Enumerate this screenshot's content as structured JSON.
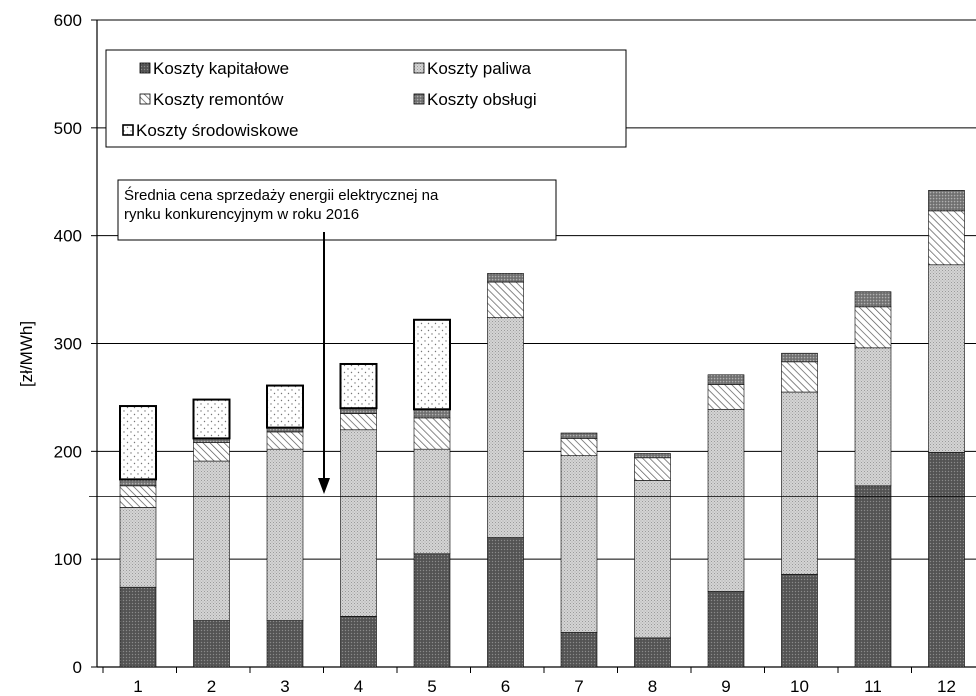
{
  "chart_data": {
    "type": "bar",
    "stacked": true,
    "ylabel": "[zł/MWh]",
    "ylim": [
      0,
      600
    ],
    "yticks": [
      0,
      100,
      200,
      300,
      400,
      500,
      600
    ],
    "categories": [
      "1",
      "2",
      "3",
      "4",
      "5",
      "6",
      "7",
      "8",
      "9",
      "10",
      "11",
      "12"
    ],
    "series": [
      {
        "name": "Koszty kapitałowe",
        "pattern": "dark",
        "values": [
          74,
          43,
          43,
          47,
          105,
          120,
          32,
          27,
          70,
          86,
          168,
          199
        ]
      },
      {
        "name": "Koszty paliwa",
        "pattern": "light",
        "values": [
          74,
          148,
          159,
          173,
          97,
          204,
          164,
          146,
          169,
          169,
          128,
          174
        ]
      },
      {
        "name": "Koszty remontów",
        "pattern": "hatch",
        "values": [
          20,
          17,
          16,
          15,
          29,
          33,
          16,
          21,
          23,
          28,
          38,
          50
        ]
      },
      {
        "name": "Koszty obsługi",
        "pattern": "medium",
        "values": [
          6,
          4,
          4,
          5,
          8,
          8,
          5,
          4,
          9,
          8,
          14,
          19
        ]
      },
      {
        "name": "Koszty środowiskowe",
        "pattern": "dots",
        "values": [
          68,
          36,
          39,
          41,
          83,
          0,
          0,
          0,
          0,
          0,
          0,
          0
        ]
      }
    ],
    "reference_line": {
      "value": 158,
      "label": "Średnia cena sprzedaży energii elektrycznej na rynku konkurencyjnym w roku 2016"
    },
    "grid": true,
    "legend": "top-left"
  }
}
